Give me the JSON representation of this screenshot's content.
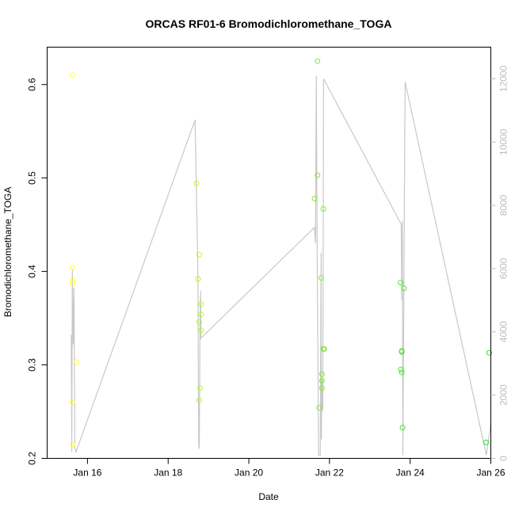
{
  "chart_data": {
    "type": "scatter",
    "title": "ORCAS RF01-6 Bromodichloromethane_TOGA",
    "xlabel": "Date",
    "ylabel": "Bromodichloromethane_TOGA",
    "xlim": [
      "2016-01-15",
      "2016-01-26"
    ],
    "ylim": [
      0.2,
      0.64
    ],
    "y2lim": [
      0,
      13000
    ],
    "x_ticks": [
      {
        "value": "2016-01-16",
        "label": "Jan 16"
      },
      {
        "value": "2016-01-18",
        "label": "Jan 18"
      },
      {
        "value": "2016-01-20",
        "label": "Jan 20"
      },
      {
        "value": "2016-01-22",
        "label": "Jan 22"
      },
      {
        "value": "2016-01-24",
        "label": "Jan 24"
      },
      {
        "value": "2016-01-26",
        "label": "Jan 26"
      }
    ],
    "y_ticks": [
      {
        "value": 0.2,
        "label": "0.2"
      },
      {
        "value": 0.3,
        "label": "0.3"
      },
      {
        "value": 0.4,
        "label": "0.4"
      },
      {
        "value": 0.5,
        "label": "0.5"
      },
      {
        "value": 0.6,
        "label": "0.6"
      }
    ],
    "y2_ticks": [
      {
        "value": 0,
        "label": "0"
      },
      {
        "value": 2000,
        "label": "2000"
      },
      {
        "value": 4000,
        "label": "4000"
      },
      {
        "value": 6000,
        "label": "6000"
      },
      {
        "value": 8000,
        "label": "8000"
      },
      {
        "value": 10000,
        "label": "10000"
      },
      {
        "value": 12000,
        "label": "12000"
      }
    ],
    "grid": false,
    "colors": {
      "point_start": "#ffff33",
      "point_end": "#22dd33",
      "altitude_line": "#c8c8c8",
      "right_axis": "#bdbdbd"
    },
    "series": [
      {
        "marker": "open-circle",
        "points": [
          [
            "2016-01-15 15:00",
            0.61
          ],
          [
            "2016-01-15 15:00",
            0.404
          ],
          [
            "2016-01-15 15:05",
            0.39
          ],
          [
            "2016-01-15 15:10",
            0.387
          ],
          [
            "2016-01-15 15:00",
            0.26
          ],
          [
            "2016-01-15 15:10",
            0.215
          ],
          [
            "2016-01-15 17:30",
            0.303
          ],
          [
            "2016-01-18 16:50",
            0.494
          ],
          [
            "2016-01-18 18:30",
            0.418
          ],
          [
            "2016-01-18 17:50",
            0.392
          ],
          [
            "2016-01-18 19:30",
            0.365
          ],
          [
            "2016-01-18 19:30",
            0.354
          ],
          [
            "2016-01-18 18:30",
            0.346
          ],
          [
            "2016-01-18 19:30",
            0.337
          ],
          [
            "2016-01-18 19:00",
            0.275
          ],
          [
            "2016-01-18 18:30",
            0.262
          ],
          [
            "2016-01-21 15:10",
            0.478
          ],
          [
            "2016-01-21 16:50",
            0.503
          ],
          [
            "2016-01-21 16:50",
            0.625
          ],
          [
            "2016-01-21 20:20",
            0.467
          ],
          [
            "2016-01-21 19:00",
            0.393
          ],
          [
            "2016-01-21 20:20",
            0.317
          ],
          [
            "2016-01-21 20:50",
            0.317
          ],
          [
            "2016-01-21 19:30",
            0.29
          ],
          [
            "2016-01-21 19:30",
            0.283
          ],
          [
            "2016-01-21 19:30",
            0.275
          ],
          [
            "2016-01-21 17:50",
            0.254
          ],
          [
            "2016-01-23 18:20",
            0.388
          ],
          [
            "2016-01-23 20:20",
            0.382
          ],
          [
            "2016-01-23 19:00",
            0.315
          ],
          [
            "2016-01-23 19:00",
            0.314
          ],
          [
            "2016-01-23 18:30",
            0.295
          ],
          [
            "2016-01-23 19:00",
            0.292
          ],
          [
            "2016-01-23 19:30",
            0.233
          ],
          [
            "2016-01-25 21:10",
            0.217
          ],
          [
            "2016-01-25 23:00",
            0.313
          ]
        ]
      },
      {
        "name": "altitude",
        "axis": "right",
        "line": [
          [
            "2016-01-15 14:20",
            3900
          ],
          [
            "2016-01-15 14:40",
            200
          ],
          [
            "2016-01-15 15:00",
            6000
          ],
          [
            "2016-01-15 15:30",
            3600
          ],
          [
            "2016-01-15 16:00",
            5400
          ],
          [
            "2016-01-15 16:30",
            300
          ],
          [
            "2016-01-15 17:10",
            200
          ],
          [
            "2016-01-18 16:00",
            10700
          ],
          [
            "2016-01-18 17:40",
            6000
          ],
          [
            "2016-01-18 18:10",
            400
          ],
          [
            "2016-01-18 18:30",
            300
          ],
          [
            "2016-01-18 19:00",
            4400
          ],
          [
            "2016-01-18 19:20",
            5300
          ],
          [
            "2016-01-18 19:30",
            3800
          ],
          [
            "2016-01-21 15:00",
            7300
          ],
          [
            "2016-01-21 15:40",
            6800
          ],
          [
            "2016-01-21 16:10",
            12100
          ],
          [
            "2016-01-21 16:40",
            6500
          ],
          [
            "2016-01-21 17:30",
            100
          ],
          [
            "2016-01-21 18:30",
            100
          ],
          [
            "2016-01-21 19:00",
            6500
          ],
          [
            "2016-01-21 19:10",
            600
          ],
          [
            "2016-01-21 19:30",
            2500
          ],
          [
            "2016-01-21 20:00",
            1500
          ],
          [
            "2016-01-21 20:30",
            12000
          ],
          [
            "2016-01-23 18:40",
            7400
          ],
          [
            "2016-01-23 19:00",
            5000
          ],
          [
            "2016-01-23 19:20",
            7500
          ],
          [
            "2016-01-23 19:40",
            100
          ],
          [
            "2016-01-23 21:00",
            11900
          ],
          [
            "2016-01-25 21:20",
            100
          ],
          [
            "2016-01-26 00:00",
            1100
          ]
        ]
      }
    ]
  }
}
